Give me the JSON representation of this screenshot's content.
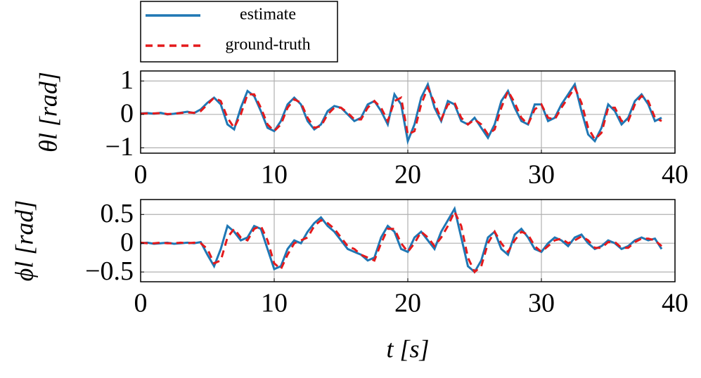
{
  "chart_data": [
    {
      "type": "line",
      "ylabel": "θl [rad]",
      "xlim": [
        0,
        40
      ],
      "xticks": [
        0,
        10,
        20,
        30,
        40
      ],
      "ylim": [
        -1.16,
        1.3
      ],
      "yticks": [
        {
          "value": -1,
          "label": "−1"
        },
        0,
        1
      ],
      "grid": true,
      "legend": "top-left-outside",
      "x": [
        0,
        0.5,
        1,
        1.5,
        2,
        2.5,
        3,
        3.5,
        4,
        4.5,
        5,
        5.5,
        6,
        6.5,
        7,
        7.5,
        8,
        8.5,
        9,
        9.5,
        10,
        10.5,
        11,
        11.5,
        12,
        12.5,
        13,
        13.5,
        14,
        14.5,
        15,
        15.5,
        16,
        16.5,
        17,
        17.5,
        18,
        18.5,
        19,
        19.5,
        20,
        20.5,
        21,
        21.5,
        22,
        22.5,
        23,
        23.5,
        24,
        24.5,
        25,
        25.5,
        26,
        26.5,
        27,
        27.5,
        28,
        28.5,
        29,
        29.5,
        30,
        30.5,
        31,
        31.5,
        32,
        32.5,
        33,
        33.5,
        34,
        34.5,
        35,
        35.5,
        36,
        36.5,
        37,
        37.5,
        38,
        38.5,
        39
      ],
      "series": [
        {
          "name": "estimate",
          "color": "#1f77b4",
          "dash": false,
          "values": [
            0.03,
            0.04,
            0.02,
            0.05,
            0.0,
            0.02,
            0.05,
            0.08,
            0.04,
            0.15,
            0.35,
            0.5,
            0.3,
            -0.3,
            -0.45,
            0.2,
            0.7,
            0.55,
            0.1,
            -0.4,
            -0.5,
            -0.2,
            0.3,
            0.5,
            0.3,
            -0.2,
            -0.45,
            -0.3,
            0.1,
            0.25,
            0.2,
            0,
            -0.2,
            -0.1,
            0.3,
            0.4,
            0.1,
            -0.3,
            0.6,
            0.3,
            -0.8,
            -0.3,
            0.5,
            0.9,
            0.2,
            -0.2,
            0.4,
            0.3,
            -0.2,
            -0.3,
            -0.1,
            -0.4,
            -0.7,
            -0.3,
            0.4,
            0.7,
            0.2,
            -0.2,
            -0.3,
            0.3,
            0.3,
            -0.2,
            -0.1,
            0.3,
            0.6,
            0.9,
            0.1,
            -0.6,
            -0.8,
            -0.4,
            0.3,
            0.1,
            -0.3,
            -0.1,
            0.4,
            0.6,
            0.3,
            -0.2,
            -0.1
          ]
        },
        {
          "name": "ground-truth",
          "color": "#e41a1c",
          "dash": true,
          "values": [
            0.02,
            0.03,
            0.03,
            0.04,
            0.01,
            0.02,
            0.04,
            0.06,
            0.05,
            0.1,
            0.3,
            0.5,
            0.4,
            -0.1,
            -0.4,
            0.0,
            0.6,
            0.6,
            0.2,
            -0.3,
            -0.5,
            -0.3,
            0.2,
            0.45,
            0.35,
            -0.1,
            -0.4,
            -0.35,
            0.0,
            0.2,
            0.2,
            0.05,
            -0.15,
            -0.15,
            0.2,
            0.4,
            0.2,
            -0.2,
            0.4,
            0.5,
            -0.6,
            -0.5,
            0.3,
            0.8,
            0.35,
            -0.15,
            0.3,
            0.35,
            -0.1,
            -0.3,
            -0.15,
            -0.3,
            -0.6,
            -0.45,
            0.2,
            0.7,
            0.35,
            -0.1,
            -0.3,
            0.15,
            0.3,
            -0.1,
            -0.15,
            0.2,
            0.5,
            0.8,
            0.35,
            -0.4,
            -0.75,
            -0.55,
            0.2,
            0.2,
            -0.2,
            -0.2,
            0.3,
            0.55,
            0.4,
            -0.1,
            -0.2
          ]
        }
      ]
    },
    {
      "type": "line",
      "ylabel": "ϕl [rad]",
      "xlabel": "t [s]",
      "xlim": [
        0,
        40
      ],
      "xticks": [
        0,
        10,
        20,
        30,
        40
      ],
      "ylim": [
        -0.67,
        0.76
      ],
      "yticks": [
        {
          "value": -0.5,
          "label": "−0.5"
        },
        0,
        0.5
      ],
      "grid": true,
      "x": [
        0,
        0.5,
        1,
        1.5,
        2,
        2.5,
        3,
        3.5,
        4,
        4.5,
        5,
        5.5,
        6,
        6.5,
        7,
        7.5,
        8,
        8.5,
        9,
        9.5,
        10,
        10.5,
        11,
        11.5,
        12,
        12.5,
        13,
        13.5,
        14,
        14.5,
        15,
        15.5,
        16,
        16.5,
        17,
        17.5,
        18,
        18.5,
        19,
        19.5,
        20,
        20.5,
        21,
        21.5,
        22,
        22.5,
        23,
        23.5,
        24,
        24.5,
        25,
        25.5,
        26,
        26.5,
        27,
        27.5,
        28,
        28.5,
        29,
        29.5,
        30,
        30.5,
        31,
        31.5,
        32,
        32.5,
        33,
        33.5,
        34,
        34.5,
        35,
        35.5,
        36,
        36.5,
        37,
        37.5,
        38,
        38.5,
        39
      ],
      "series": [
        {
          "name": "estimate",
          "color": "#1f77b4",
          "dash": false,
          "values": [
            0.0,
            0.01,
            -0.01,
            0.0,
            0.01,
            -0.01,
            0.0,
            0.01,
            0.0,
            0.02,
            -0.2,
            -0.4,
            -0.1,
            0.3,
            0.2,
            0.05,
            0.1,
            0.3,
            0.25,
            -0.1,
            -0.45,
            -0.4,
            -0.1,
            0.05,
            0,
            0.2,
            0.35,
            0.45,
            0.3,
            0.2,
            0.05,
            -0.1,
            -0.15,
            -0.2,
            -0.3,
            -0.25,
            0.1,
            0.3,
            0.2,
            -0.1,
            -0.15,
            0.1,
            0.2,
            0.05,
            -0.1,
            0.2,
            0.4,
            0.6,
            0.1,
            -0.4,
            -0.5,
            -0.3,
            0.1,
            0.2,
            -0.1,
            -0.2,
            0.15,
            0.25,
            0.1,
            -0.1,
            -0.15,
            0,
            0.1,
            0.05,
            -0.05,
            0.1,
            0.15,
            0,
            -0.1,
            -0.05,
            0.05,
            0,
            -0.1,
            -0.05,
            0.05,
            0.1,
            0.05,
            0.08,
            -0.1
          ]
        },
        {
          "name": "ground-truth",
          "color": "#e41a1c",
          "dash": true,
          "values": [
            0.01,
            0.0,
            0.0,
            0.01,
            0.0,
            0.0,
            0.01,
            0.0,
            0.01,
            0.0,
            -0.1,
            -0.35,
            -0.3,
            0.1,
            0.25,
            0.1,
            0.05,
            0.25,
            0.3,
            0.05,
            -0.35,
            -0.45,
            -0.2,
            0.0,
            0.05,
            0.1,
            0.3,
            0.4,
            0.35,
            0.25,
            0.1,
            -0.05,
            -0.1,
            -0.2,
            -0.25,
            -0.3,
            0.0,
            0.25,
            0.25,
            0.0,
            -0.15,
            0.0,
            0.2,
            0.1,
            -0.05,
            0.1,
            0.3,
            0.55,
            0.3,
            -0.25,
            -0.5,
            -0.4,
            0.0,
            0.2,
            0.0,
            -0.15,
            0.05,
            0.2,
            0.15,
            -0.05,
            -0.15,
            -0.05,
            0.05,
            0.08,
            0.0,
            0.05,
            0.12,
            0.05,
            -0.08,
            -0.08,
            0.02,
            0.02,
            -0.08,
            -0.08,
            0.02,
            0.08,
            0.08,
            0.05,
            -0.05
          ]
        }
      ]
    }
  ]
}
